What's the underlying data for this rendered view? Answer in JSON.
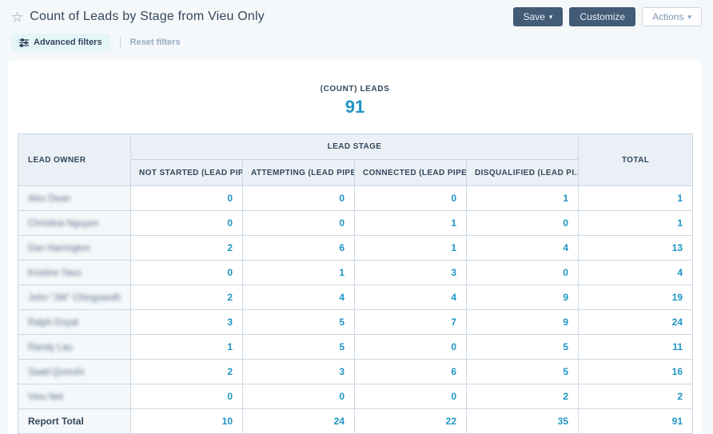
{
  "header": {
    "title": "Count of Leads by Stage from Vieu Only",
    "buttons": {
      "save": "Save",
      "customize": "Customize",
      "actions": "Actions"
    }
  },
  "icons": {
    "favorite_star": "☆",
    "caret_down": "▾",
    "advanced_filters": "sliders"
  },
  "filters": {
    "advanced": "Advanced filters",
    "reset": "Reset filters"
  },
  "summary": {
    "label": "(COUNT) LEADS",
    "value": "91"
  },
  "colors": {
    "accent_teal": "#1d95c4",
    "dark_navy": "#33475b",
    "button_slate": "#425b76",
    "border": "#cbd6e2",
    "header_bg": "#eaf0f6",
    "owner_cell_bg": "#f5f8fa",
    "page_bg": "#f5f8fa",
    "chip_bg": "#e5f5f8",
    "muted": "#99acc2"
  },
  "table": {
    "owner_header": "LEAD OWNER",
    "group_header": "LEAD STAGE",
    "total_header": "TOTAL",
    "stage_headers": [
      "NOT STARTED (LEAD PIP…",
      "ATTEMPTING (LEAD PIPE…",
      "CONNECTED (LEAD PIPE…",
      "DISQUALIFIED (LEAD PI…"
    ],
    "rows": [
      {
        "owner": "Alex Dean",
        "owner_blurred": true,
        "values": [
          0,
          0,
          0,
          1
        ],
        "total": 1
      },
      {
        "owner": "Christina Nguyen",
        "owner_blurred": true,
        "values": [
          0,
          0,
          1,
          0
        ],
        "total": 1
      },
      {
        "owner": "Dan Harrington",
        "owner_blurred": true,
        "values": [
          2,
          6,
          1,
          4
        ],
        "total": 13
      },
      {
        "owner": "Kristine Yaso",
        "owner_blurred": true,
        "values": [
          0,
          1,
          3,
          0
        ],
        "total": 4
      },
      {
        "owner": "John \"JW\" Chingswoth",
        "owner_blurred": true,
        "values": [
          2,
          4,
          4,
          9
        ],
        "total": 19
      },
      {
        "owner": "Ralph Doyal",
        "owner_blurred": true,
        "values": [
          3,
          5,
          7,
          9
        ],
        "total": 24
      },
      {
        "owner": "Randy Lau",
        "owner_blurred": true,
        "values": [
          1,
          5,
          0,
          5
        ],
        "total": 11
      },
      {
        "owner": "Saad Qureshi",
        "owner_blurred": true,
        "values": [
          2,
          3,
          6,
          5
        ],
        "total": 16
      },
      {
        "owner": "Vieu Net",
        "owner_blurred": true,
        "values": [
          0,
          0,
          0,
          2
        ],
        "total": 2
      }
    ],
    "total_row": {
      "label": "Report Total",
      "values": [
        10,
        24,
        22,
        35
      ],
      "total": 91
    }
  }
}
